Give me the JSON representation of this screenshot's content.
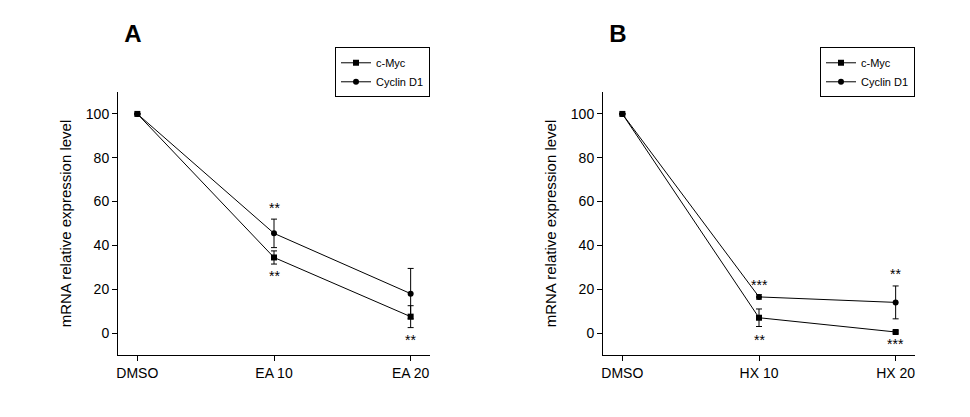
{
  "chart_data": [
    {
      "type": "line",
      "title": "A",
      "categories": [
        "DMSO",
        "EA 10",
        "EA 20"
      ],
      "y_label": "mRNA relative expression level",
      "series": [
        {
          "name": "c-Myc",
          "color": "#000000",
          "marker": "square",
          "values": [
            100,
            34.5,
            7.5
          ],
          "error": [
            0,
            3,
            5
          ]
        },
        {
          "name": "Cyclin D1",
          "color": "#000000",
          "marker": "circle",
          "values": [
            100,
            45.5,
            18
          ],
          "error": [
            0,
            6.5,
            11.5
          ]
        }
      ],
      "ylim": [
        -10,
        110
      ],
      "yticks": [
        0,
        20,
        40,
        60,
        80,
        100
      ],
      "grid": false,
      "legend": "top-right",
      "annotations": [
        {
          "x": "EA 10",
          "y": 57,
          "text": "**"
        },
        {
          "x": "EA 10",
          "y": 26,
          "text": "**"
        },
        {
          "x": "EA 20",
          "y": -3,
          "text": "**"
        }
      ]
    },
    {
      "type": "line",
      "title": "B",
      "categories": [
        "DMSO",
        "HX 10",
        "HX 20"
      ],
      "y_label": "mRNA relative expression level",
      "series": [
        {
          "name": "c-Myc",
          "color": "#000000",
          "marker": "square",
          "values": [
            100,
            7,
            0.5
          ],
          "error": [
            0,
            4,
            0.5
          ]
        },
        {
          "name": "Cyclin D1",
          "color": "#000000",
          "marker": "circle",
          "values": [
            100,
            16.5,
            14
          ],
          "error": [
            0,
            1,
            7.5
          ]
        }
      ],
      "ylim": [
        -10,
        110
      ],
      "yticks": [
        0,
        20,
        40,
        60,
        80,
        100
      ],
      "grid": false,
      "legend": "top-right",
      "annotations": [
        {
          "x": "HX 10",
          "y": 22,
          "text": "***"
        },
        {
          "x": "HX 10",
          "y": -3,
          "text": "**"
        },
        {
          "x": "HX 20",
          "y": 27,
          "text": "**"
        },
        {
          "x": "HX 20",
          "y": -5,
          "text": "***"
        }
      ]
    }
  ]
}
